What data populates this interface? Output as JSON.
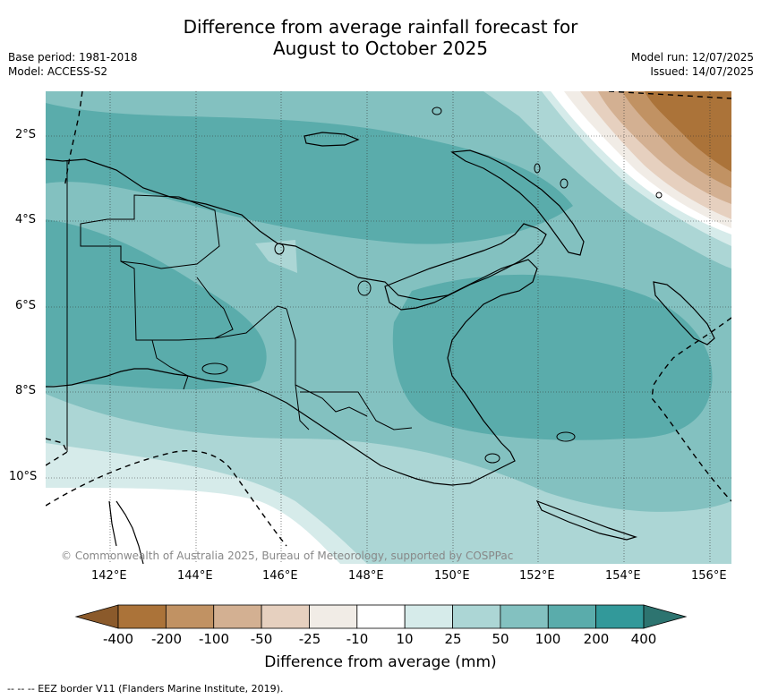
{
  "header": {
    "title_line1": "Difference from average rainfall forecast for",
    "title_line2": "August to October 2025",
    "base_period": "Base period: 1981-2018",
    "model": "Model: ACCESS-S2",
    "model_run": "Model run: 12/07/2025",
    "issued": "Issued: 14/07/2025"
  },
  "map": {
    "copyright": "© Commonwealth of Australia 2025, Bureau of Meteorology, supported by COSPPac",
    "lat_labels": [
      "2°S",
      "4°S",
      "6°S",
      "8°S",
      "10°S"
    ],
    "lon_labels": [
      "142°E",
      "144°E",
      "146°E",
      "148°E",
      "150°E",
      "152°E",
      "154°E",
      "156°E"
    ]
  },
  "colorbar": {
    "labels": [
      "-400",
      "-200",
      "-100",
      "-50",
      "-25",
      "-10",
      "10",
      "25",
      "50",
      "100",
      "200",
      "400"
    ],
    "colors": [
      "#ab7339",
      "#c19263",
      "#d3b092",
      "#e6d0bf",
      "#f1ece6",
      "#ffffff",
      "#d6ebea",
      "#acd6d5",
      "#83c1c0",
      "#5aacab",
      "#32999a"
    ],
    "low_color": "#8b5a2b",
    "high_color": "#2d7470",
    "title": "Difference from average (mm)"
  },
  "footer": {
    "legend": "--  --  -- EEZ border V11 (Flanders Marine Institute, 2019)."
  }
}
